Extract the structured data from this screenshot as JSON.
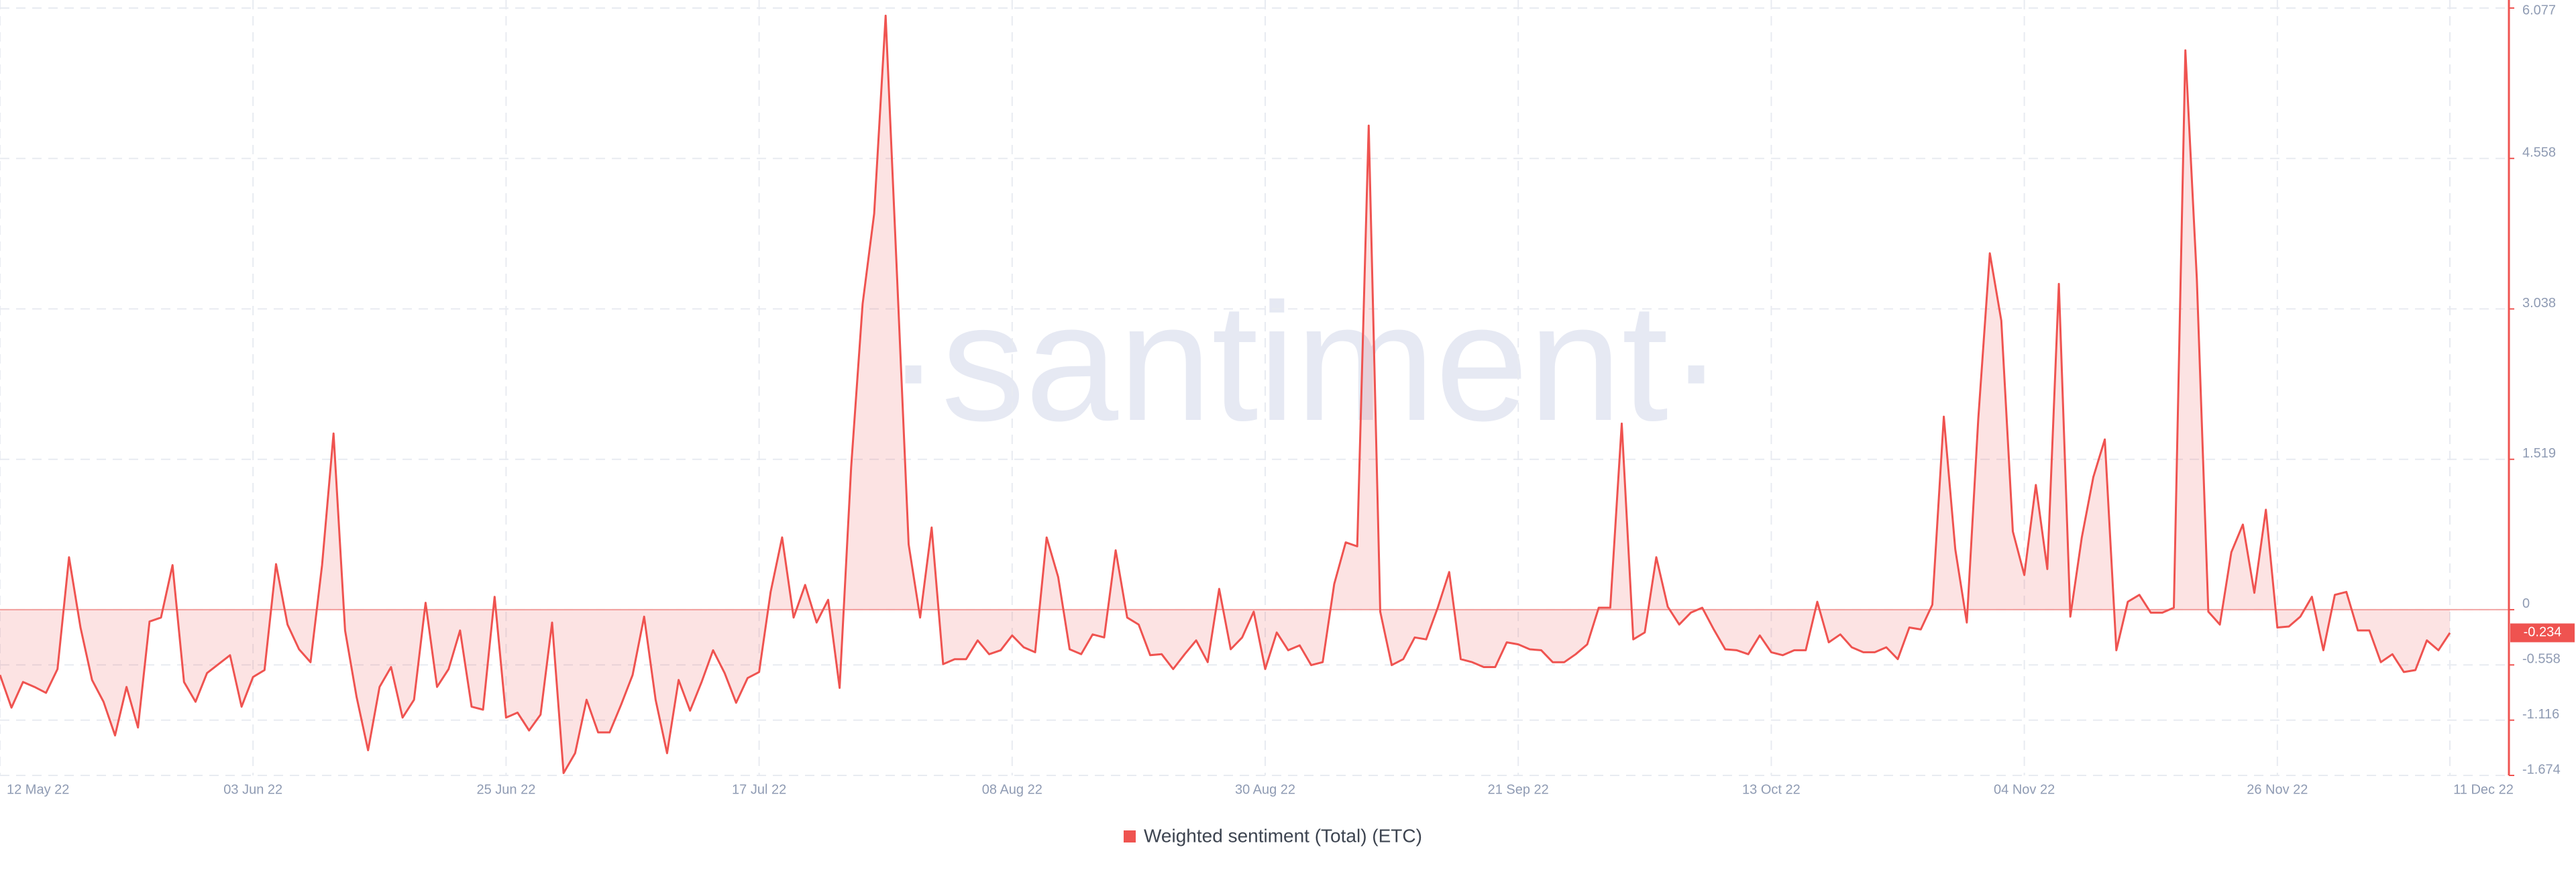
{
  "chart_data": {
    "type": "area-line",
    "watermark": "·santiment·",
    "series": [
      {
        "name": "Weighted sentiment (Total) (ETC)",
        "color": "#ef5350",
        "values": [
          -0.66,
          -0.99,
          -0.73,
          -0.78,
          -0.84,
          -0.6,
          0.53,
          -0.18,
          -0.71,
          -0.93,
          -1.27,
          -0.78,
          -1.19,
          -0.12,
          -0.08,
          0.45,
          -0.73,
          -0.93,
          -0.64,
          -0.55,
          -0.46,
          -0.98,
          -0.68,
          -0.61,
          0.46,
          -0.15,
          -0.4,
          -0.53,
          0.45,
          1.78,
          -0.21,
          -0.88,
          -1.42,
          -0.78,
          -0.58,
          -1.09,
          -0.91,
          0.07,
          -0.78,
          -0.6,
          -0.21,
          -0.98,
          -1.01,
          0.13,
          -1.09,
          -1.04,
          -1.22,
          -1.06,
          -0.13,
          -1.65,
          -1.45,
          -0.91,
          -1.24,
          -1.24,
          -0.96,
          -0.66,
          -0.07,
          -0.91,
          -1.45,
          -0.71,
          -1.02,
          -0.73,
          -0.41,
          -0.64,
          -0.94,
          -0.69,
          -0.63,
          0.18,
          0.73,
          -0.08,
          0.25,
          -0.13,
          0.1,
          -0.79,
          1.44,
          3.09,
          4.0,
          6.0,
          3.34,
          0.66,
          -0.08,
          0.83,
          -0.55,
          -0.5,
          -0.5,
          -0.31,
          -0.45,
          -0.41,
          -0.26,
          -0.38,
          -0.43,
          0.73,
          0.33,
          -0.4,
          -0.45,
          -0.25,
          -0.28,
          0.6,
          -0.08,
          -0.15,
          -0.46,
          -0.45,
          -0.6,
          -0.45,
          -0.31,
          -0.53,
          0.21,
          -0.4,
          -0.28,
          -0.02,
          -0.6,
          -0.23,
          -0.41,
          -0.36,
          -0.56,
          -0.53,
          0.26,
          0.68,
          0.64,
          4.89,
          -0.02,
          -0.56,
          -0.5,
          -0.28,
          -0.3,
          0.02,
          0.38,
          -0.5,
          -0.53,
          -0.58,
          -0.58,
          -0.33,
          -0.35,
          -0.4,
          -0.41,
          -0.53,
          -0.53,
          -0.45,
          -0.35,
          0.02,
          0.02,
          1.88,
          -0.3,
          -0.23,
          0.53,
          0.03,
          -0.15,
          -0.03,
          0.02,
          -0.2,
          -0.4,
          -0.41,
          -0.45,
          -0.26,
          -0.43,
          -0.46,
          -0.41,
          -0.41,
          0.08,
          -0.33,
          -0.25,
          -0.38,
          -0.43,
          -0.43,
          -0.38,
          -0.5,
          -0.18,
          -0.2,
          0.05,
          1.95,
          0.61,
          -0.13,
          1.93,
          3.6,
          2.92,
          0.79,
          0.35,
          1.26,
          0.41,
          3.29,
          -0.07,
          0.73,
          1.34,
          1.72,
          -0.41,
          0.08,
          0.15,
          -0.03,
          -0.03,
          0.02,
          5.65,
          3.34,
          -0.02,
          -0.15,
          0.58,
          0.86,
          0.17,
          1.01,
          -0.18,
          -0.17,
          -0.07,
          0.13,
          -0.41,
          0.15,
          0.18,
          -0.21,
          -0.21,
          -0.53,
          -0.45,
          -0.63,
          -0.61,
          -0.31,
          -0.41,
          -0.234
        ]
      }
    ],
    "x": [
      "2022-05-12",
      "2022-05-13",
      "2022-05-14",
      "2022-05-15",
      "2022-05-16",
      "2022-05-17",
      "2022-05-18",
      "2022-05-19",
      "2022-05-20",
      "2022-05-21",
      "2022-05-22",
      "2022-05-23",
      "2022-05-24",
      "2022-05-25",
      "2022-05-26",
      "2022-05-27",
      "2022-05-28",
      "2022-05-29",
      "2022-05-30",
      "2022-05-31",
      "2022-06-01",
      "2022-06-02",
      "2022-06-03",
      "2022-06-04",
      "2022-06-05",
      "2022-06-06",
      "2022-06-07",
      "2022-06-08",
      "2022-06-09",
      "2022-06-10",
      "2022-06-11",
      "2022-06-12",
      "2022-06-13",
      "2022-06-14",
      "2022-06-15",
      "2022-06-16",
      "2022-06-17",
      "2022-06-18",
      "2022-06-19",
      "2022-06-20",
      "2022-06-21",
      "2022-06-22",
      "2022-06-23",
      "2022-06-24",
      "2022-06-25",
      "2022-06-26",
      "2022-06-27",
      "2022-06-28",
      "2022-06-29",
      "2022-06-30",
      "2022-07-01",
      "2022-07-02",
      "2022-07-03",
      "2022-07-04",
      "2022-07-05",
      "2022-07-06",
      "2022-07-07",
      "2022-07-08",
      "2022-07-09",
      "2022-07-10",
      "2022-07-11",
      "2022-07-12",
      "2022-07-13",
      "2022-07-14",
      "2022-07-15",
      "2022-07-16",
      "2022-07-17",
      "2022-07-18",
      "2022-07-19",
      "2022-07-20",
      "2022-07-21",
      "2022-07-22",
      "2022-07-23",
      "2022-07-24",
      "2022-07-25",
      "2022-07-26",
      "2022-07-27",
      "2022-07-28",
      "2022-07-29",
      "2022-07-30",
      "2022-07-31",
      "2022-08-01",
      "2022-08-02",
      "2022-08-03",
      "2022-08-04",
      "2022-08-05",
      "2022-08-06",
      "2022-08-07",
      "2022-08-08",
      "2022-08-09",
      "2022-08-10",
      "2022-08-11",
      "2022-08-12",
      "2022-08-13",
      "2022-08-14",
      "2022-08-15",
      "2022-08-16",
      "2022-08-17",
      "2022-08-18",
      "2022-08-19",
      "2022-08-20",
      "2022-08-21",
      "2022-08-22",
      "2022-08-23",
      "2022-08-24",
      "2022-08-25",
      "2022-08-26",
      "2022-08-27",
      "2022-08-28",
      "2022-08-29",
      "2022-08-30",
      "2022-08-31",
      "2022-09-01",
      "2022-09-02",
      "2022-09-03",
      "2022-09-04",
      "2022-09-05",
      "2022-09-06",
      "2022-09-07",
      "2022-09-08",
      "2022-09-09",
      "2022-09-10",
      "2022-09-11",
      "2022-09-12",
      "2022-09-13",
      "2022-09-14",
      "2022-09-15",
      "2022-09-16",
      "2022-09-17",
      "2022-09-18",
      "2022-09-19",
      "2022-09-20",
      "2022-09-21",
      "2022-09-22",
      "2022-09-23",
      "2022-09-24",
      "2022-09-25",
      "2022-09-26",
      "2022-09-27",
      "2022-09-28",
      "2022-09-29",
      "2022-09-30",
      "2022-10-01",
      "2022-10-02",
      "2022-10-03",
      "2022-10-04",
      "2022-10-05",
      "2022-10-06",
      "2022-10-07",
      "2022-10-08",
      "2022-10-09",
      "2022-10-10",
      "2022-10-11",
      "2022-10-12",
      "2022-10-13",
      "2022-10-14",
      "2022-10-15",
      "2022-10-16",
      "2022-10-17",
      "2022-10-18",
      "2022-10-19",
      "2022-10-20",
      "2022-10-21",
      "2022-10-22",
      "2022-10-23",
      "2022-10-24",
      "2022-10-25",
      "2022-10-26",
      "2022-10-27",
      "2022-10-28",
      "2022-10-29",
      "2022-10-30",
      "2022-10-31",
      "2022-11-01",
      "2022-11-02",
      "2022-11-03",
      "2022-11-04",
      "2022-11-05",
      "2022-11-06",
      "2022-11-07",
      "2022-11-08",
      "2022-11-09",
      "2022-11-10",
      "2022-11-11",
      "2022-11-12",
      "2022-11-13",
      "2022-11-14",
      "2022-11-15",
      "2022-11-16",
      "2022-11-17",
      "2022-11-18",
      "2022-11-19",
      "2022-11-20",
      "2022-11-21",
      "2022-11-22",
      "2022-11-23",
      "2022-11-24",
      "2022-11-25",
      "2022-11-26",
      "2022-11-27",
      "2022-11-28",
      "2022-11-29",
      "2022-11-30",
      "2022-12-01",
      "2022-12-02",
      "2022-12-03",
      "2022-12-04",
      "2022-12-05",
      "2022-12-06",
      "2022-12-07",
      "2022-12-08",
      "2022-12-09",
      "2022-12-10",
      "2022-12-11"
    ],
    "xticks": [
      {
        "value": "2022-05-12",
        "label": "12 May 22"
      },
      {
        "value": "2022-06-03",
        "label": "03 Jun 22"
      },
      {
        "value": "2022-06-25",
        "label": "25 Jun 22"
      },
      {
        "value": "2022-07-17",
        "label": "17 Jul 22"
      },
      {
        "value": "2022-08-08",
        "label": "08 Aug 22"
      },
      {
        "value": "2022-08-30",
        "label": "30 Aug 22"
      },
      {
        "value": "2022-09-21",
        "label": "21 Sep 22"
      },
      {
        "value": "2022-10-13",
        "label": "13 Oct 22"
      },
      {
        "value": "2022-11-04",
        "label": "04 Nov 22"
      },
      {
        "value": "2022-11-26",
        "label": "26 Nov 22"
      },
      {
        "value": "2022-12-11",
        "label": "11 Dec 22"
      }
    ],
    "ylim": [
      -1.674,
      6.077
    ],
    "yticks": [
      6.077,
      4.558,
      3.038,
      1.519,
      0,
      -0.558,
      -1.116,
      -1.674
    ],
    "grid": true
  }
}
